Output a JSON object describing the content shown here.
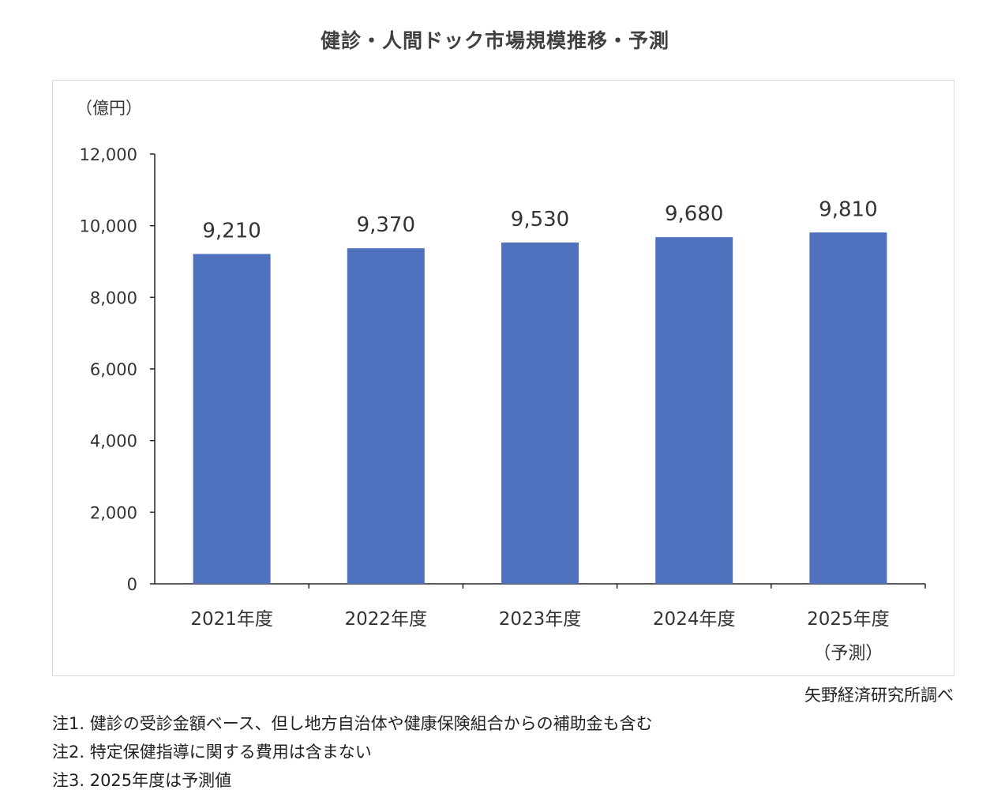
{
  "chart_data": {
    "type": "bar",
    "title": "健診・人間ドック市場規模推移・予測",
    "unit_label": "（億円）",
    "categories": [
      "2021年度",
      "2022年度",
      "2023年度",
      "2024年度",
      "2025年度"
    ],
    "category_sublabels": [
      "",
      "",
      "",
      "",
      "（予測）"
    ],
    "values": [
      9210,
      9370,
      9530,
      9680,
      9810
    ],
    "value_labels": [
      "9,210",
      "9,370",
      "9,530",
      "9,680",
      "9,810"
    ],
    "ylim": [
      0,
      12000
    ],
    "yticks": [
      0,
      2000,
      4000,
      6000,
      8000,
      10000,
      12000
    ],
    "ytick_labels": [
      "0",
      "2,000",
      "4,000",
      "6,000",
      "8,000",
      "10,000",
      "12,000"
    ],
    "bar_color": "#4f71be",
    "grid": false,
    "legend": "none"
  },
  "source": "矢野経済研究所調べ",
  "notes": [
    "注1.  健診の受診金額ベース、但し地方自治体や健康保険組合からの補助金も含む",
    "注2.  特定保健指導に関する費用は含まない",
    "注3.  2025年度は予測値"
  ]
}
